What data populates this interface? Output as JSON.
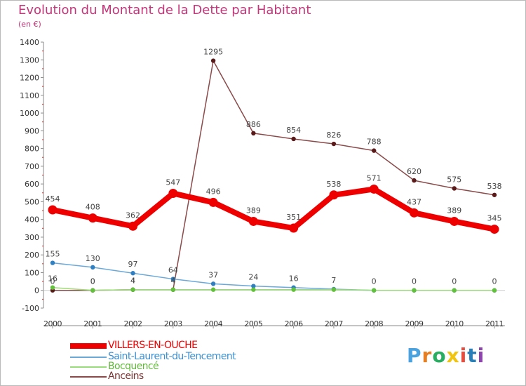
{
  "header": {
    "title": "Evolution du Montant de la Dette par Habitant",
    "subtitle": "(en €)"
  },
  "logo": {
    "text": "Proxiti",
    "colors": [
      "#4aa3df",
      "#e67e22",
      "#27ae60",
      "#f1c40f",
      "#e74c3c",
      "#2980b9",
      "#8e44ad"
    ]
  },
  "chart_data": {
    "type": "line",
    "title": "Evolution du Montant de la Dette par Habitant",
    "ylabel": "(en €)",
    "xlabel": "",
    "x": [
      "2000",
      "2001",
      "2002",
      "2003",
      "2004",
      "2005",
      "2006",
      "2007",
      "2008",
      "2009",
      "2010",
      "2011"
    ],
    "ylim": [
      -100,
      1400
    ],
    "yticks": [
      "-100",
      "0",
      "100",
      "200",
      "300",
      "400",
      "500",
      "600",
      "700",
      "800",
      "900",
      "1000",
      "1100",
      "1200",
      "1300",
      "1400"
    ],
    "grid": false,
    "legend": "bottom",
    "series": [
      {
        "name": "Anceins",
        "color": "#8b4a4a",
        "marker": "#5a1a1a",
        "values": [
          0,
          0,
          4,
          4,
          1295,
          886,
          854,
          826,
          788,
          620,
          575,
          538
        ],
        "labels": [
          "0",
          "0",
          "4",
          "4",
          "1295",
          "886",
          "854",
          "826",
          "788",
          "620",
          "575",
          "538"
        ]
      },
      {
        "name": "Saint-Laurent-du-Tencement",
        "color": "#6aa8d8",
        "marker": "#2f7fc1",
        "values": [
          155,
          130,
          97,
          64,
          37,
          24,
          16,
          7,
          0,
          0,
          0,
          0
        ],
        "labels": [
          "155",
          "130",
          "97",
          "64",
          "37",
          "24",
          "16",
          "7",
          "0",
          "0",
          "0",
          "0"
        ]
      },
      {
        "name": "Bocquencé",
        "color": "#9bdc7a",
        "marker": "#62c13a",
        "values": [
          16,
          0,
          4,
          4,
          4,
          4,
          4,
          4,
          0,
          0,
          0,
          0
        ],
        "labels": [
          "16",
          "0",
          "4",
          "4",
          "",
          "",
          "",
          "",
          "",
          "",
          "",
          ""
        ]
      },
      {
        "name": "VILLERS-EN-OUCHE",
        "color": "#ee0000",
        "marker": "#ee0000",
        "values": [
          454,
          408,
          362,
          547,
          496,
          389,
          351,
          538,
          571,
          437,
          389,
          345
        ],
        "labels": [
          "454",
          "408",
          "362",
          "547",
          "496",
          "389",
          "351",
          "538",
          "571",
          "437",
          "389",
          "345"
        ]
      }
    ]
  },
  "legend": {
    "items": [
      {
        "name": "VILLERS-EN-OUCHE",
        "color": "#ee0000",
        "label_color": "#ee0000"
      },
      {
        "name": "Saint-Laurent-du-Tencement",
        "color": "#6aa8d8",
        "label_color": "#3c8fd1"
      },
      {
        "name": "Bocquencé",
        "color": "#9bdc7a",
        "label_color": "#62b83c"
      },
      {
        "name": "Anceins",
        "color": "#8b4a4a",
        "label_color": "#7a3434"
      }
    ]
  }
}
